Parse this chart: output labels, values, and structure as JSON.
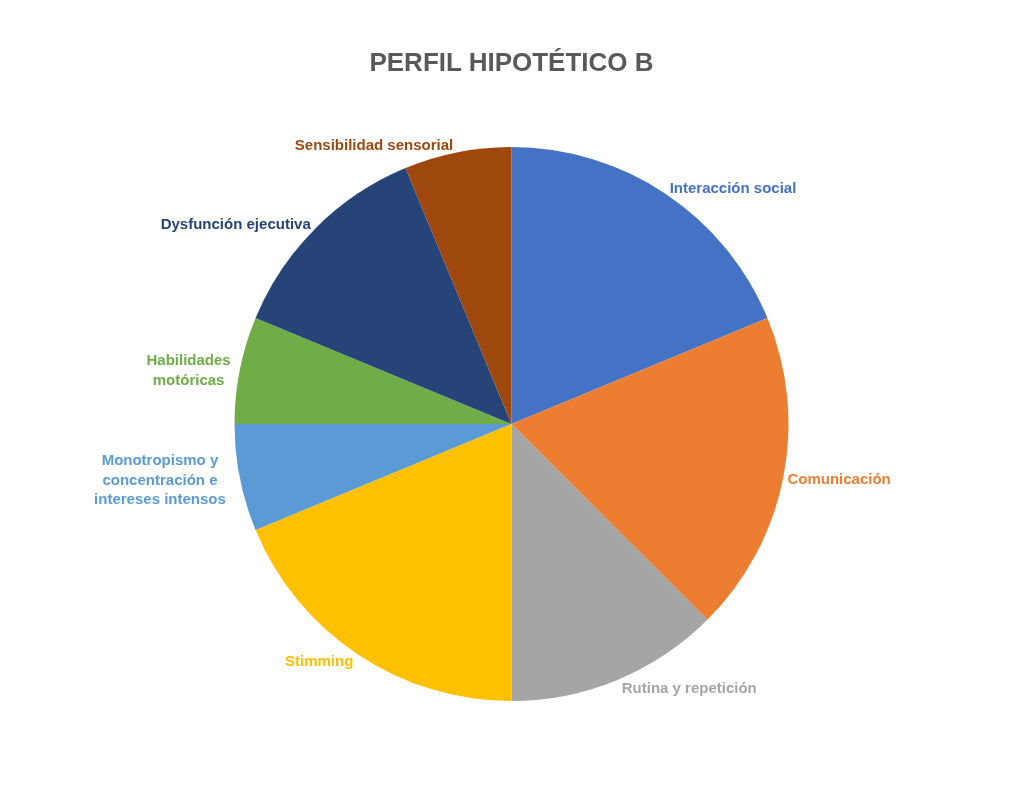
{
  "chart_data": {
    "type": "pie",
    "title": "PERFIL HIPOTÉTICO B",
    "categories": [
      "Interacción social",
      "Comunicación",
      "Rutina y repetición",
      "Stimming",
      "Monotropismo y\nconcentración e\nintereses intensos",
      "Habilidades\nmotóricas",
      "Dysfunción ejecutiva",
      "Sensibilidad sensorial"
    ],
    "values": [
      18.75,
      18.75,
      12.5,
      18.75,
      6.25,
      6.25,
      12.5,
      6.25
    ],
    "colors": [
      "#4472c4",
      "#ed7d31",
      "#a5a5a5",
      "#ffc000",
      "#5b9bd5",
      "#70ad47",
      "#264478",
      "#9e480e"
    ],
    "legend": false
  }
}
